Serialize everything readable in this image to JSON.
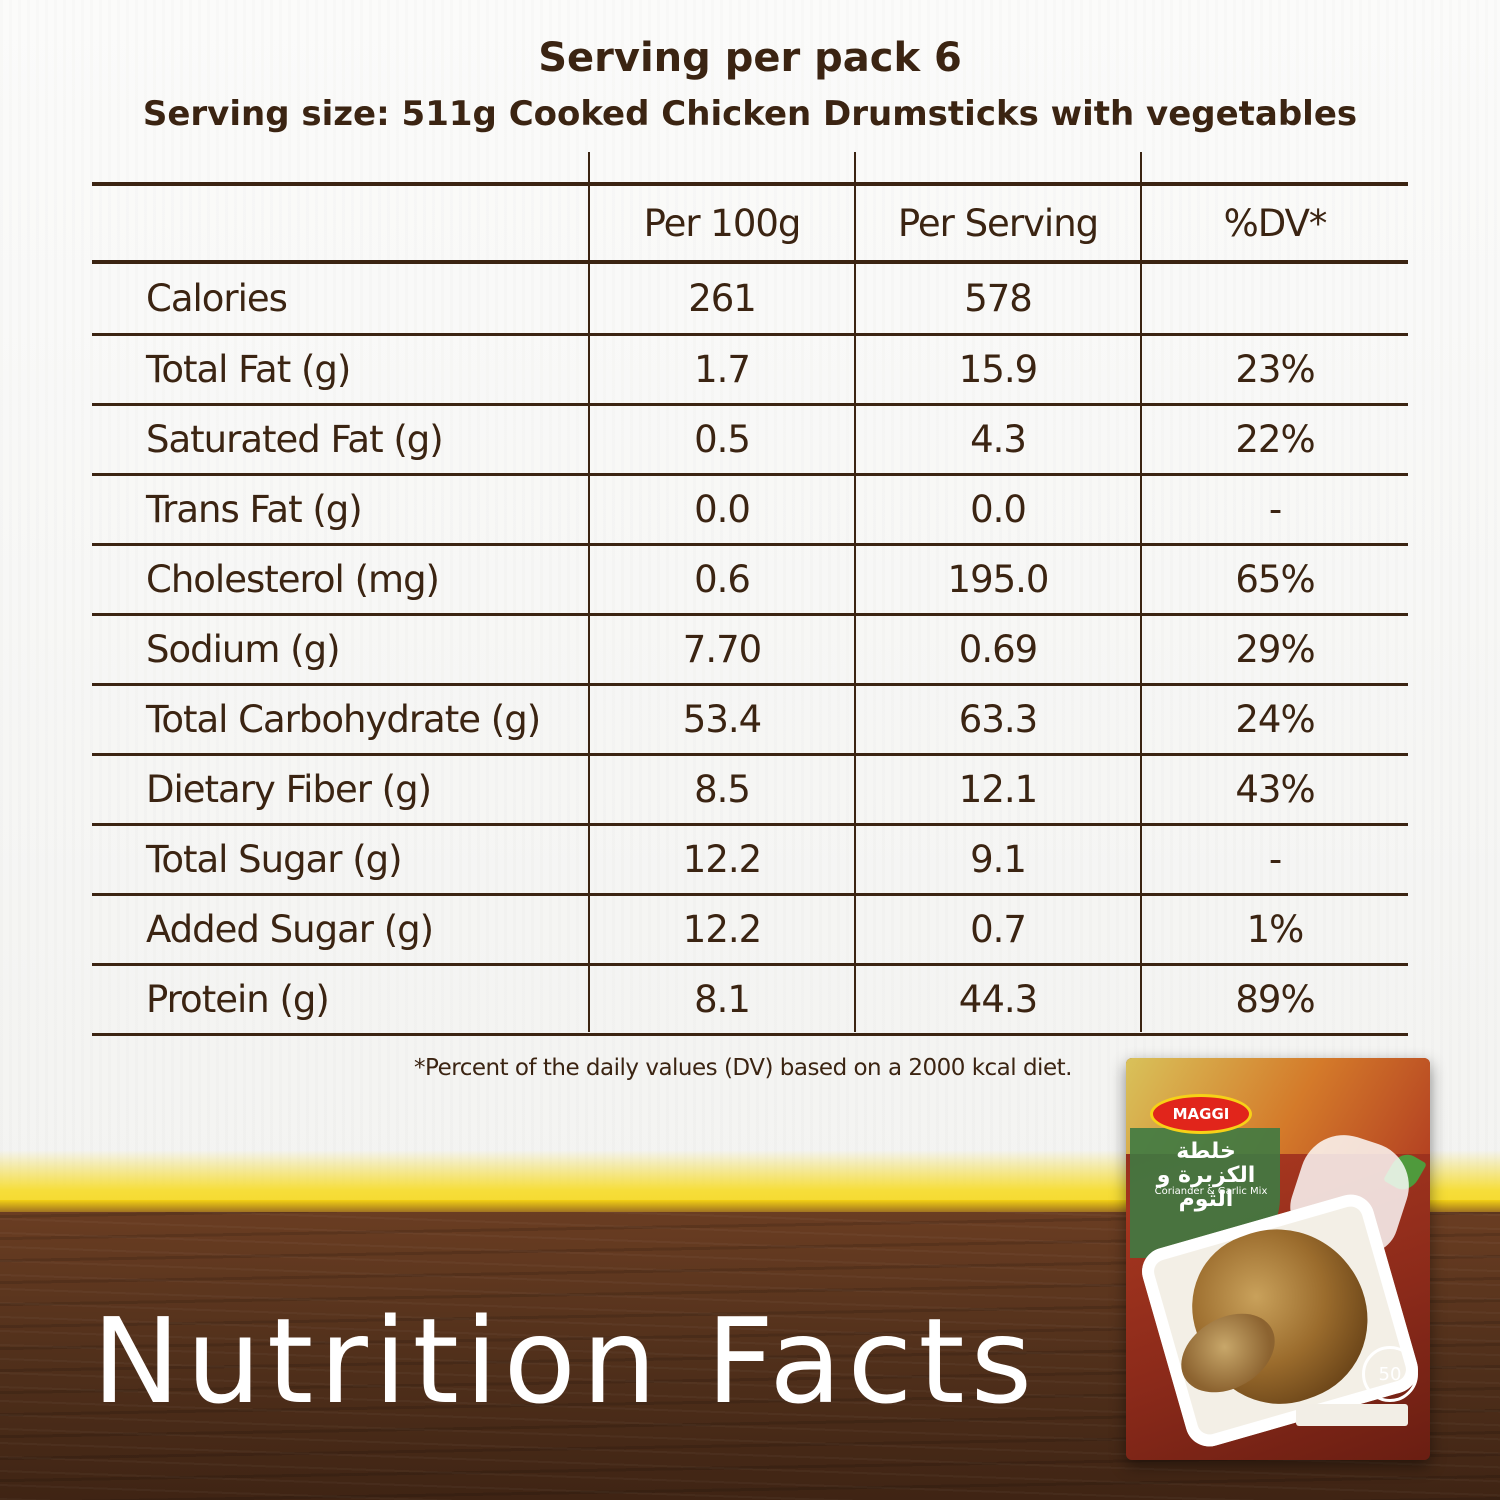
{
  "header": {
    "serving_per_pack": "Serving per pack 6",
    "serving_size": "Serving size: 511g Cooked Chicken Drumsticks with vegetables"
  },
  "table": {
    "columns": [
      "",
      "Per 100g",
      "Per Serving",
      "%DV*"
    ],
    "rows": [
      {
        "label": "Calories",
        "per100g": "261",
        "perServing": "578",
        "dv": ""
      },
      {
        "label": "Total Fat (g)",
        "per100g": "1.7",
        "perServing": "15.9",
        "dv": "23%"
      },
      {
        "label": "Saturated Fat (g)",
        "per100g": "0.5",
        "perServing": "4.3",
        "dv": "22%"
      },
      {
        "label": "Trans Fat (g)",
        "per100g": "0.0",
        "perServing": "0.0",
        "dv": "-"
      },
      {
        "label": "Cholesterol (mg)",
        "per100g": "0.6",
        "perServing": "195.0",
        "dv": "65%"
      },
      {
        "label": "Sodium (g)",
        "per100g": "7.70",
        "perServing": "0.69",
        "dv": "29%"
      },
      {
        "label": "Total Carbohydrate (g)",
        "per100g": "53.4",
        "perServing": "63.3",
        "dv": "24%"
      },
      {
        "label": "Dietary Fiber (g)",
        "per100g": "8.5",
        "perServing": "12.1",
        "dv": "43%"
      },
      {
        "label": "Total Sugar (g)",
        "per100g": "12.2",
        "perServing": "9.1",
        "dv": "-"
      },
      {
        "label": "Added Sugar (g)",
        "per100g": "12.2",
        "perServing": "0.7",
        "dv": "1%"
      },
      {
        "label": "Protein (g)",
        "per100g": "8.1",
        "perServing": "44.3",
        "dv": "89%"
      }
    ]
  },
  "footnote": "*Percent of the daily values (DV) based on a 2000 kcal diet.",
  "title": "Nutrition Facts",
  "pack": {
    "brand": "MAGGI",
    "name_ar": "خلطة الكزبرة و الثوم",
    "name_en": "Coriander & Garlic Mix",
    "badge": "50"
  },
  "colors": {
    "text": "#3b2412",
    "yellow": "#f2cf14",
    "wood": "#51301b"
  }
}
